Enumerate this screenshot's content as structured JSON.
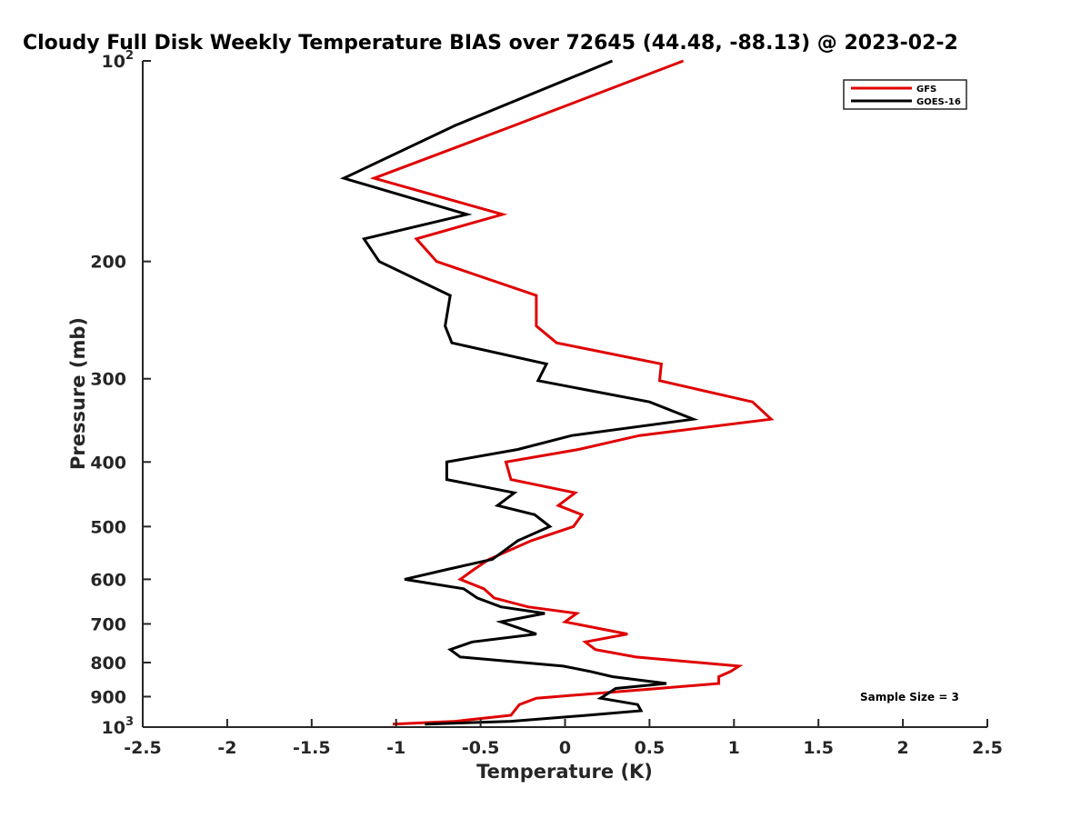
{
  "chart_data": {
    "type": "line",
    "title": "Cloudy Full Disk Weekly Temperature BIAS over 72645 (44.48, -88.13) @ 2023-02-2",
    "xlabel": "Temperature (K)",
    "ylabel": "Pressure (mb)",
    "xlim": [
      -2.5,
      2.5
    ],
    "ylim": [
      100,
      1000
    ],
    "y_scale": "log",
    "y_reversed": true,
    "xticks": [
      "-2.5",
      "-2",
      "-1.5",
      "-1",
      "-0.5",
      "0",
      "0.5",
      "1",
      "1.5",
      "2",
      "2.5"
    ],
    "yticks": [
      {
        "value": 100,
        "base": "10",
        "exp": "2"
      },
      {
        "value": 200,
        "label": "200"
      },
      {
        "value": 300,
        "label": "300"
      },
      {
        "value": 400,
        "label": "400"
      },
      {
        "value": 500,
        "label": "500"
      },
      {
        "value": 600,
        "label": "600"
      },
      {
        "value": 700,
        "label": "700"
      },
      {
        "value": 800,
        "label": "800"
      },
      {
        "value": 900,
        "label": "900"
      },
      {
        "value": 1000,
        "base": "10",
        "exp": "3"
      }
    ],
    "grid": false,
    "legend_position": "top-right",
    "annotation": "Sample Size = 3",
    "series": [
      {
        "name": "GFS",
        "color": "#e00000",
        "points": [
          [
            0.7,
            100
          ],
          [
            -0.3,
            125
          ],
          [
            -1.13,
            150
          ],
          [
            -0.37,
            170
          ],
          [
            -0.88,
            185
          ],
          [
            -0.76,
            200
          ],
          [
            -0.17,
            225
          ],
          [
            -0.17,
            250
          ],
          [
            -0.05,
            265
          ],
          [
            0.57,
            285
          ],
          [
            0.56,
            302
          ],
          [
            1.11,
            325
          ],
          [
            1.22,
            345
          ],
          [
            0.44,
            365
          ],
          [
            0.08,
            383
          ],
          [
            -0.35,
            400
          ],
          [
            -0.32,
            425
          ],
          [
            0.06,
            445
          ],
          [
            -0.04,
            465
          ],
          [
            0.1,
            480
          ],
          [
            0.05,
            500
          ],
          [
            -0.2,
            525
          ],
          [
            -0.45,
            560
          ],
          [
            -0.54,
            580
          ],
          [
            -0.62,
            600
          ],
          [
            -0.48,
            620
          ],
          [
            -0.42,
            640
          ],
          [
            -0.22,
            660
          ],
          [
            0.07,
            675
          ],
          [
            0.0,
            695
          ],
          [
            0.37,
            725
          ],
          [
            0.12,
            745
          ],
          [
            0.18,
            765
          ],
          [
            0.42,
            785
          ],
          [
            1.03,
            810
          ],
          [
            0.98,
            825
          ],
          [
            0.91,
            840
          ],
          [
            0.91,
            860
          ],
          [
            0.55,
            875
          ],
          [
            -0.17,
            905
          ],
          [
            -0.27,
            925
          ],
          [
            -0.3,
            945
          ],
          [
            -0.32,
            960
          ],
          [
            -0.65,
            980
          ],
          [
            -1.02,
            990
          ]
        ]
      },
      {
        "name": "GOES-16",
        "color": "#000000",
        "points": [
          [
            0.28,
            100
          ],
          [
            -0.65,
            125
          ],
          [
            -1.31,
            150
          ],
          [
            -0.58,
            170
          ],
          [
            -1.19,
            185
          ],
          [
            -1.1,
            200
          ],
          [
            -0.68,
            225
          ],
          [
            -0.71,
            250
          ],
          [
            -0.67,
            265
          ],
          [
            -0.11,
            285
          ],
          [
            -0.16,
            302
          ],
          [
            0.5,
            325
          ],
          [
            0.76,
            345
          ],
          [
            0.04,
            365
          ],
          [
            -0.28,
            383
          ],
          [
            -0.7,
            400
          ],
          [
            -0.7,
            425
          ],
          [
            -0.3,
            445
          ],
          [
            -0.4,
            465
          ],
          [
            -0.18,
            480
          ],
          [
            -0.09,
            500
          ],
          [
            -0.28,
            525
          ],
          [
            -0.43,
            560
          ],
          [
            -0.7,
            580
          ],
          [
            -0.95,
            600
          ],
          [
            -0.6,
            620
          ],
          [
            -0.52,
            640
          ],
          [
            -0.38,
            660
          ],
          [
            -0.12,
            675
          ],
          [
            -0.38,
            695
          ],
          [
            -0.17,
            725
          ],
          [
            -0.55,
            745
          ],
          [
            -0.68,
            765
          ],
          [
            -0.62,
            785
          ],
          [
            -0.01,
            810
          ],
          [
            0.15,
            825
          ],
          [
            0.28,
            840
          ],
          [
            0.6,
            860
          ],
          [
            0.3,
            875
          ],
          [
            0.21,
            905
          ],
          [
            0.43,
            925
          ],
          [
            0.45,
            945
          ],
          [
            0.13,
            960
          ],
          [
            -0.32,
            980
          ],
          [
            -0.83,
            990
          ]
        ]
      }
    ]
  }
}
